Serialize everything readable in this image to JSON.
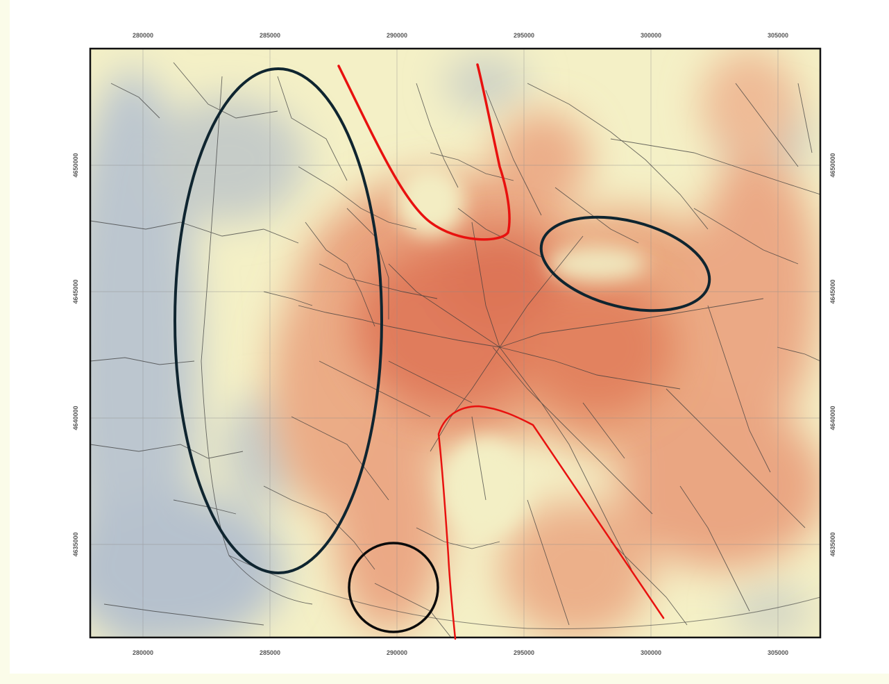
{
  "map": {
    "colors": {
      "low": "#b9c3cd",
      "mid": "#f6f2c3",
      "high": "#e48a67",
      "peak": "#da6d4f",
      "boundary": "#333333",
      "annotation_red": "#e8110f",
      "annotation_dark": "#0f2530"
    },
    "x_ticks": [
      "280000",
      "285000",
      "290000",
      "295000",
      "300000",
      "305000"
    ],
    "y_ticks": [
      "4650000",
      "4645000",
      "4640000",
      "4635000"
    ]
  }
}
